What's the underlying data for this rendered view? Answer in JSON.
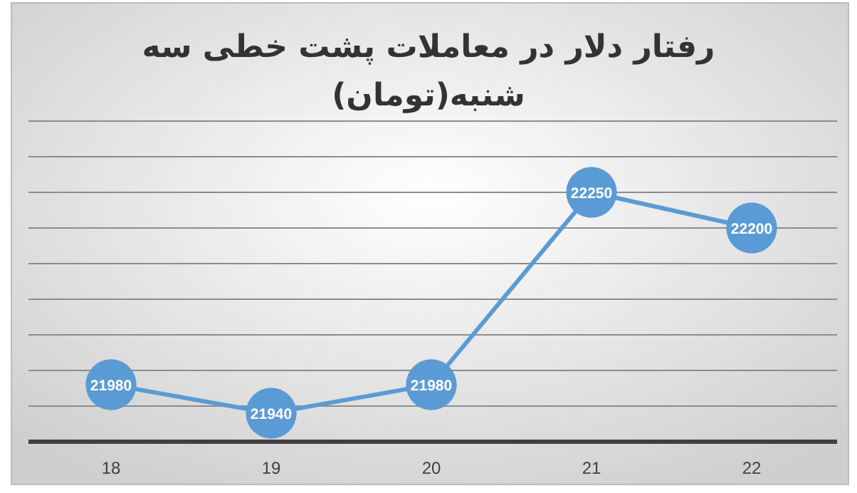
{
  "chart_data": {
    "type": "line",
    "title": "رفتار دلار در معاملات پشت خطی سه شنبه(تومان)",
    "categories": [
      "18",
      "19",
      "20",
      "21",
      "22"
    ],
    "series": [
      {
        "color": "#5b9bd5",
        "values": [
          21980,
          21940,
          21980,
          22250,
          22200
        ]
      }
    ],
    "ylim": [
      21900,
      22350
    ],
    "yticks": [
      {
        "value": 21900,
        "label": null
      },
      {
        "value": 21950,
        "label": null
      },
      {
        "value": 22000,
        "label": null
      },
      {
        "value": 22050,
        "label": null
      },
      {
        "value": 22100,
        "label": null
      },
      {
        "value": 22150,
        "label": null
      },
      {
        "value": 22200,
        "label": null
      },
      {
        "value": 22250,
        "label": null
      },
      {
        "value": 22300,
        "label": null
      },
      {
        "value": 22350,
        "label": null
      }
    ],
    "tick_labels": "x",
    "grid": "y",
    "marker": "circle",
    "line_style": "solid",
    "data_labels": true
  }
}
